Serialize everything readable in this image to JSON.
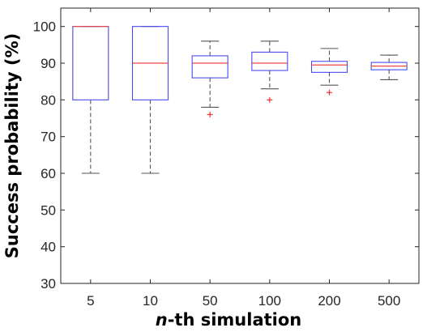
{
  "chart_data": {
    "type": "box",
    "xlabel_italic": "n",
    "xlabel_rest": "-th simulation",
    "ylabel": "Success probability (%)",
    "categories": [
      "5",
      "10",
      "50",
      "100",
      "200",
      "500"
    ],
    "ylim": [
      30,
      105
    ],
    "yticks": [
      30,
      40,
      50,
      60,
      70,
      80,
      90,
      100
    ],
    "grid": false,
    "boxes": [
      {
        "category": "5",
        "min": 60,
        "q1": 80,
        "median": 100,
        "q3": 100,
        "max": 100,
        "outliers": []
      },
      {
        "category": "10",
        "min": 60,
        "q1": 80,
        "median": 90,
        "q3": 100,
        "max": 100,
        "outliers": []
      },
      {
        "category": "50",
        "min": 78,
        "q1": 86,
        "median": 90,
        "q3": 92,
        "max": 96,
        "outliers": [
          76
        ]
      },
      {
        "category": "100",
        "min": 83,
        "q1": 88,
        "median": 90,
        "q3": 93,
        "max": 96,
        "outliers": [
          80
        ]
      },
      {
        "category": "200",
        "min": 84,
        "q1": 87.5,
        "median": 89.5,
        "q3": 90.5,
        "max": 94,
        "outliers": [
          82
        ]
      },
      {
        "category": "500",
        "min": 85.5,
        "q1": 88.2,
        "median": 89.2,
        "q3": 90.2,
        "max": 92.2,
        "outliers": []
      }
    ],
    "colors": {
      "box": "#4a4af0",
      "median": "#ee4444",
      "whisker": "#555555",
      "outlier": "#ee3333",
      "axis": "#262626"
    }
  }
}
